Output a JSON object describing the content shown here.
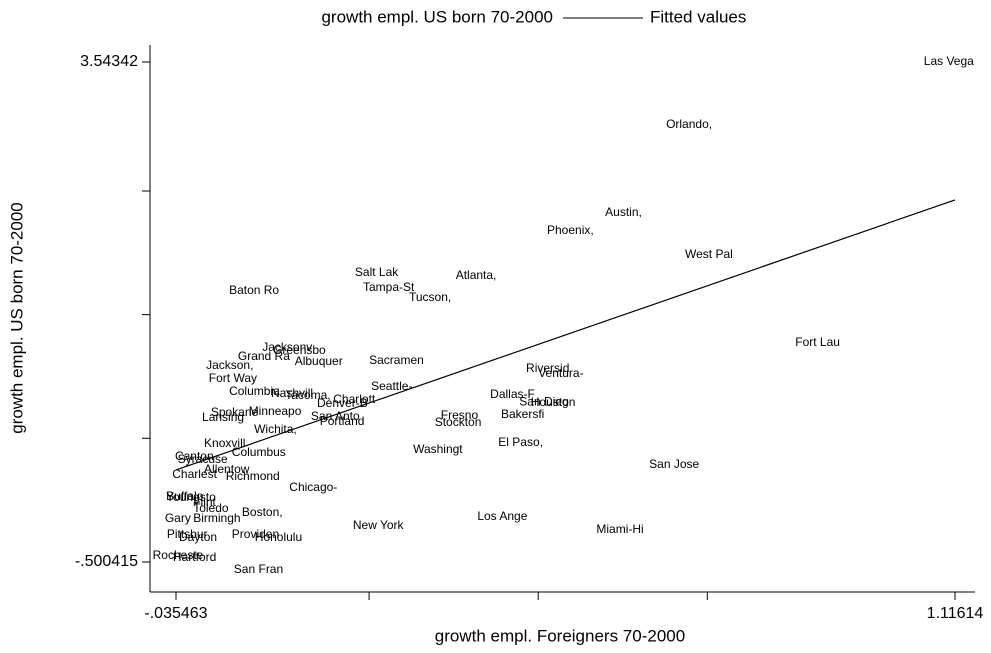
{
  "chart_data": {
    "type": "scatter",
    "xlabel": "growth empl. Foreigners 70-2000",
    "ylabel": "growth empl. US born 70-2000",
    "xlim": [
      -0.0739,
      1.1457
    ],
    "ylim": [
      -0.743,
      3.6809
    ],
    "xticks": [
      {
        "value": -0.035463,
        "label": "-.035463"
      },
      {
        "value": 1.11614,
        "label": "1.11614"
      }
    ],
    "xticks_unlabeled": [
      0.25,
      0.5,
      0.75
    ],
    "yticks": [
      {
        "value": -0.500415,
        "label": "-.500415"
      },
      {
        "value": 3.54342,
        "label": "3.54342"
      }
    ],
    "yticks_unlabeled": [
      0.5,
      1.5,
      2.5
    ],
    "series": [
      {
        "name": "growth empl. US born 70-2000",
        "color": "#000000",
        "labels": [
          "Las Vega",
          "Orlando,",
          "Austin,",
          "Phoenix,",
          "West Pal",
          "Salt Lak",
          "Atlanta,",
          "Tampa-St",
          "Tucson,",
          "Baton Ro",
          "Fort Lau",
          "Jacksonv",
          "Greensbo",
          "Grand Ra",
          "Albuquer",
          "Sacramen",
          "Jackson,",
          "Riversid",
          "Ventura-",
          "Fort Way",
          "Seattle-",
          "Columbia",
          "Nashvill",
          "Tacoma,",
          "Charlott",
          "Denver-B",
          "Dallas-F",
          "San Dieg",
          "Houston",
          "Minneapo",
          "San Anto",
          "Spokane",
          "Lansing",
          "Portland",
          "Bakersfi",
          "Fresno",
          "Stockton",
          "Wichita,",
          "Knoxvill",
          "Washingt",
          "El Paso,",
          "Columbus",
          "Canton",
          "Syracuse",
          "San Jose",
          "Allentow",
          "Charlest",
          "Richmond",
          "Chicago-",
          "Youngsto",
          "Buffalo",
          "Flint",
          "Toledo",
          "Boston,",
          "Gary",
          "Birmingh",
          "Pittsbur",
          "Dayton",
          "Providen",
          "Honolulu",
          "New York",
          "Los Ange",
          "Miami-Hi",
          "Rocheste",
          "Hartford",
          "San Fran"
        ],
        "x": [
          1.07,
          0.689,
          0.599,
          0.513,
          0.717,
          0.229,
          0.378,
          0.241,
          0.309,
          0.043,
          0.88,
          0.092,
          0.108,
          0.056,
          0.14,
          0.25,
          0.009,
          0.482,
          0.5,
          0.013,
          0.253,
          0.043,
          0.105,
          0.126,
          0.197,
          0.173,
          0.429,
          0.472,
          0.489,
          0.072,
          0.164,
          0.016,
          0.003,
          0.177,
          0.445,
          0.356,
          0.347,
          0.08,
          0.006,
          0.315,
          0.441,
          0.047,
          -0.037,
          -0.033,
          0.664,
          0.006,
          -0.041,
          0.038,
          0.132,
          -0.05,
          -0.05,
          -0.01,
          -0.01,
          0.062,
          -0.052,
          -0.01,
          -0.049,
          -0.031,
          0.047,
          0.081,
          0.226,
          0.41,
          0.586,
          -0.07,
          -0.04,
          0.05
        ],
        "values": [
          3.543,
          3.034,
          2.322,
          2.177,
          1.983,
          1.837,
          1.813,
          1.716,
          1.635,
          1.691,
          1.271,
          1.231,
          1.206,
          1.157,
          1.117,
          1.125,
          1.085,
          1.06,
          1.02,
          0.98,
          0.915,
          0.874,
          0.858,
          0.842,
          0.81,
          0.777,
          0.85,
          0.793,
          0.785,
          0.713,
          0.672,
          0.705,
          0.664,
          0.632,
          0.688,
          0.68,
          0.624,
          0.567,
          0.454,
          0.405,
          0.462,
          0.381,
          0.349,
          0.325,
          0.284,
          0.244,
          0.203,
          0.187,
          0.098,
          0.017,
          0.025,
          -0.023,
          -0.072,
          -0.104,
          -0.153,
          -0.153,
          -0.282,
          -0.306,
          -0.282,
          -0.306,
          -0.209,
          -0.136,
          -0.242,
          -0.45,
          -0.468,
          -0.565
        ]
      },
      {
        "name": "Fitted values",
        "color": "#000000",
        "line": true,
        "x": [
          -0.035463,
          1.11614
        ],
        "values": [
          0.244,
          2.428
        ]
      }
    ]
  }
}
